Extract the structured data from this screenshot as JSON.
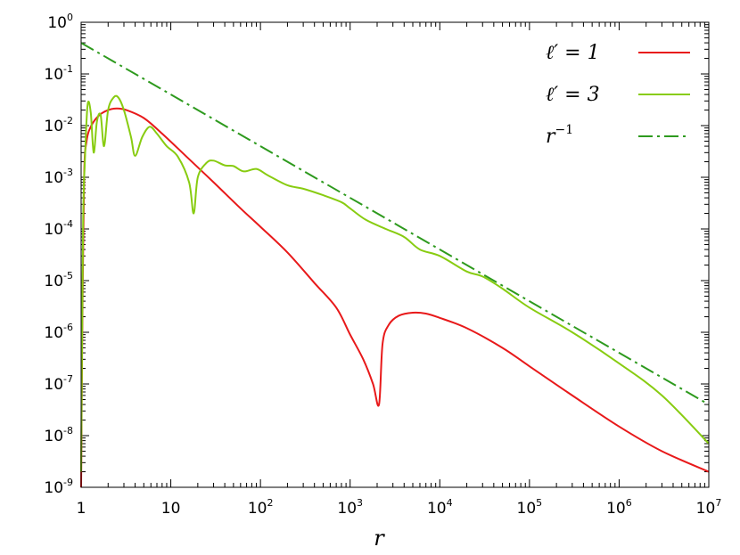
{
  "chart_data": {
    "type": "line",
    "title": "",
    "xlabel": "r",
    "ylabel": "",
    "xscale": "log",
    "yscale": "log",
    "xlim": [
      1,
      10000000
    ],
    "ylim": [
      1e-09,
      1
    ],
    "grid": false,
    "legend_position": "top-right",
    "x_ticks": [
      {
        "base": "1",
        "exp": ""
      },
      {
        "base": "10",
        "exp": ""
      },
      {
        "base": "10",
        "exp": "2"
      },
      {
        "base": "10",
        "exp": "3"
      },
      {
        "base": "10",
        "exp": "4"
      },
      {
        "base": "10",
        "exp": "5"
      },
      {
        "base": "10",
        "exp": "6"
      },
      {
        "base": "10",
        "exp": "7"
      }
    ],
    "y_ticks": [
      {
        "base": "10",
        "exp": "0"
      },
      {
        "base": "10",
        "exp": "-1"
      },
      {
        "base": "10",
        "exp": "-2"
      },
      {
        "base": "10",
        "exp": "-3"
      },
      {
        "base": "10",
        "exp": "-4"
      },
      {
        "base": "10",
        "exp": "-5"
      },
      {
        "base": "10",
        "exp": "-6"
      },
      {
        "base": "10",
        "exp": "-7"
      },
      {
        "base": "10",
        "exp": "-8"
      },
      {
        "base": "10",
        "exp": "-9"
      }
    ],
    "series": [
      {
        "name": "ℓ′ = 1",
        "legend_main": "ℓ′ = 1",
        "legend_sup": "",
        "color": "#e8191a",
        "dash": "",
        "points": [
          [
            1.0,
            1e-09
          ],
          [
            1.03,
            1e-06
          ],
          [
            1.08,
            0.001
          ],
          [
            1.15,
            0.005
          ],
          [
            1.3,
            0.01
          ],
          [
            1.6,
            0.016
          ],
          [
            2.0,
            0.02
          ],
          [
            2.5,
            0.0215
          ],
          [
            3.2,
            0.02
          ],
          [
            5,
            0.014
          ],
          [
            8,
            0.007
          ],
          [
            15,
            0.0025
          ],
          [
            30,
            0.0008
          ],
          [
            60,
            0.00025
          ],
          [
            100,
            0.00011
          ],
          [
            200,
            3.5e-05
          ],
          [
            400,
            9e-06
          ],
          [
            700,
            3e-06
          ],
          [
            1000,
            9e-07
          ],
          [
            1400,
            3e-07
          ],
          [
            1800,
            1e-07
          ],
          [
            2100,
            4e-08
          ],
          [
            2300,
            6e-07
          ],
          [
            2700,
            1.4e-06
          ],
          [
            3500,
            2.1e-06
          ],
          [
            5000,
            2.4e-06
          ],
          [
            7000,
            2.3e-06
          ],
          [
            10000,
            1.9e-06
          ],
          [
            20000,
            1.2e-06
          ],
          [
            50000,
            5e-07
          ],
          [
            100000,
            2.2e-07
          ],
          [
            300000,
            6e-08
          ],
          [
            1000000,
            1.5e-08
          ],
          [
            3000000,
            5e-09
          ],
          [
            10000000,
            2e-09
          ]
        ]
      },
      {
        "name": "ℓ′ = 3",
        "legend_main": "ℓ′ = 3",
        "legend_sup": "",
        "color": "#88cc11",
        "dash": "",
        "points": [
          [
            1.0,
            2e-09
          ],
          [
            1.05,
            0.0001
          ],
          [
            1.1,
            0.002
          ],
          [
            1.18,
            0.025
          ],
          [
            1.28,
            0.018
          ],
          [
            1.38,
            0.003
          ],
          [
            1.5,
            0.012
          ],
          [
            1.65,
            0.016
          ],
          [
            1.8,
            0.004
          ],
          [
            2.0,
            0.02
          ],
          [
            2.3,
            0.035
          ],
          [
            2.6,
            0.035
          ],
          [
            3.0,
            0.02
          ],
          [
            3.6,
            0.006
          ],
          [
            4.0,
            0.0026
          ],
          [
            4.8,
            0.006
          ],
          [
            5.8,
            0.0095
          ],
          [
            7,
            0.007
          ],
          [
            9,
            0.004
          ],
          [
            12,
            0.0025
          ],
          [
            16,
            0.0008
          ],
          [
            18,
            0.0002
          ],
          [
            20,
            0.001
          ],
          [
            25,
            0.0019
          ],
          [
            30,
            0.0021
          ],
          [
            40,
            0.0017
          ],
          [
            50,
            0.00165
          ],
          [
            65,
            0.0013
          ],
          [
            90,
            0.00145
          ],
          [
            120,
            0.0011
          ],
          [
            200,
            0.0007
          ],
          [
            300,
            0.0006
          ],
          [
            500,
            0.00045
          ],
          [
            800,
            0.00033
          ],
          [
            1000,
            0.00025
          ],
          [
            1500,
            0.00015
          ],
          [
            2500,
            0.0001
          ],
          [
            4000,
            7e-05
          ],
          [
            6000,
            4e-05
          ],
          [
            10000,
            3e-05
          ],
          [
            20000,
            1.5e-05
          ],
          [
            30000,
            1.2e-05
          ],
          [
            50000,
            7e-06
          ],
          [
            100000,
            3e-06
          ],
          [
            300000,
            1e-06
          ],
          [
            1000000,
            2.5e-07
          ],
          [
            3000000,
            6e-08
          ],
          [
            10000000,
            7e-09
          ]
        ]
      },
      {
        "name": "r⁻¹",
        "legend_main": "r",
        "legend_sup": "−1",
        "color": "#2e9a1e",
        "dash": "16 5 3 5",
        "points": [
          [
            1,
            0.4
          ],
          [
            10000000,
            4e-08
          ]
        ]
      }
    ]
  }
}
